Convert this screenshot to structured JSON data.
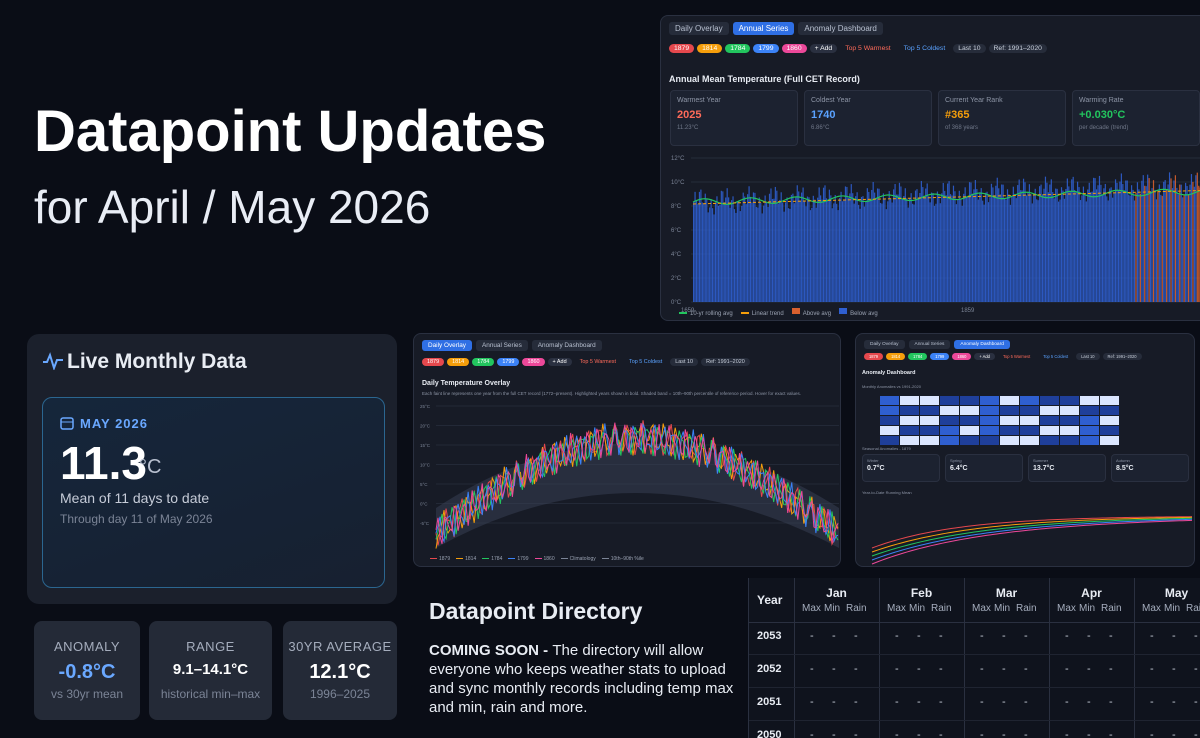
{
  "header": {
    "title": "Datapoint Updates",
    "subtitle": "for April / May 2026"
  },
  "annual_screenshot": {
    "tabs": [
      "Daily Overlay",
      "Annual Series",
      "Anomaly Dashboard"
    ],
    "chips": [
      "1879",
      "1814",
      "1784",
      "1799",
      "1860"
    ],
    "add": "+ Add",
    "filters": [
      "Top 5 Warmest",
      "Top 5 Coldest",
      "Last 10"
    ],
    "ref": "Ref: 1991–2020",
    "title": "Annual Mean Temperature (Full CET Record)",
    "stats": [
      {
        "label": "Warmest Year",
        "value": "2025",
        "note": "11.23°C"
      },
      {
        "label": "Coldest Year",
        "value": "1740",
        "note": "6.86°C"
      },
      {
        "label": "Current Year Rank",
        "value": "#365",
        "note": "of 368 years"
      },
      {
        "label": "Warming Rate",
        "value": "+0.030°C",
        "note": "per decade (trend)"
      }
    ],
    "yticks": [
      "12°C",
      "10°C",
      "8°C",
      "6°C",
      "4°C",
      "2°C",
      "0°C"
    ],
    "xticks": [
      "1659",
      "1859"
    ],
    "legend": [
      "10-yr rolling avg",
      "Linear trend",
      "Above avg",
      "Below avg"
    ]
  },
  "live": {
    "title": "Live Monthly Data",
    "month": "MAY 2026",
    "value": "11.3",
    "unit": "°C",
    "caption": "Mean of 11 days to date",
    "sub": "Through day 11 of May 2026",
    "cards": [
      {
        "label": "ANOMALY",
        "value": "-0.8°C",
        "note": "vs 30yr mean"
      },
      {
        "label": "RANGE",
        "value": "9.1–14.1°C",
        "note": "historical min–max"
      },
      {
        "label": "30YR AVERAGE",
        "value": "12.1°C",
        "note": "1996–2025"
      }
    ]
  },
  "daily_screenshot": {
    "title": "Daily Temperature Overlay",
    "description": "Each faint line represents one year from the full CET record (1772–present). Highlighted years shown in bold. Shaded band = 10th–90th percentile of reference period. Hover for exact values.",
    "yticks": [
      "25°C",
      "20°C",
      "15°C",
      "10°C",
      "5°C",
      "0°C",
      "-5°C"
    ],
    "legend": [
      "1879",
      "1814",
      "1784",
      "1799",
      "1860",
      "Climatology",
      "10th–90th %ile"
    ]
  },
  "anomaly_screenshot": {
    "title": "Anomaly Dashboard",
    "section1": "Monthly Anomalies vs 1991-2020",
    "section2": "Seasonal Anomalies - 1879",
    "seasons": [
      {
        "label": "Winter",
        "value": "0.7°C"
      },
      {
        "label": "Spring",
        "value": "6.4°C"
      },
      {
        "label": "Summer",
        "value": "13.7°C"
      },
      {
        "label": "Autumn",
        "value": "8.5°C"
      }
    ],
    "section3": "Year-to-Date Running Mean"
  },
  "directory": {
    "title": "Datapoint Directory",
    "lead": "COMING SOON - ",
    "body": "The directory will allow everyone who keeps weather stats to upload and sync monthly records including temp max and min, rain and more."
  },
  "table": {
    "year_header": "Year",
    "months": [
      "Jan",
      "Feb",
      "Mar",
      "Apr",
      "May"
    ],
    "subheaders": [
      "Max",
      "Min",
      "Rain"
    ],
    "rows": [
      {
        "year": "2053",
        "cells": [
          "-",
          "-",
          "-",
          "-",
          "-",
          "-",
          "-",
          "-",
          "-",
          "-",
          "-",
          "-",
          "-",
          "-",
          "-"
        ]
      },
      {
        "year": "2052",
        "cells": [
          "-",
          "-",
          "-",
          "-",
          "-",
          "-",
          "-",
          "-",
          "-",
          "-",
          "-",
          "-",
          "-",
          "-",
          "-"
        ]
      },
      {
        "year": "2051",
        "cells": [
          "-",
          "-",
          "-",
          "-",
          "-",
          "-",
          "-",
          "-",
          "-",
          "-",
          "-",
          "-",
          "-",
          "-",
          "-"
        ]
      },
      {
        "year": "2050",
        "cells": [
          "-",
          "-",
          "-",
          "-",
          "-",
          "-",
          "-",
          "-",
          "-",
          "-",
          "-",
          "-",
          "-",
          "-",
          "-"
        ]
      }
    ]
  }
}
